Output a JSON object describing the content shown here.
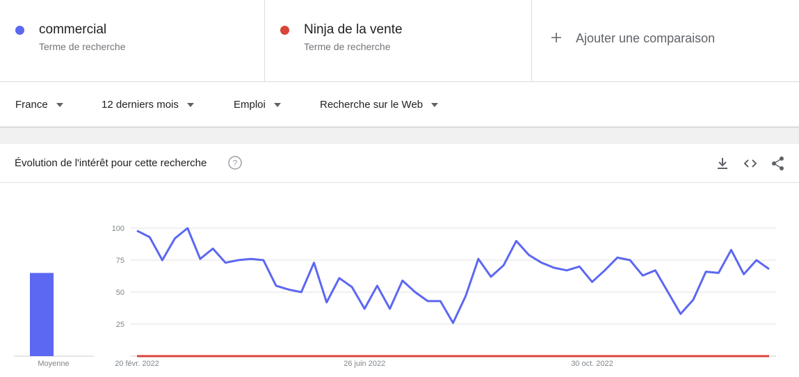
{
  "header": {
    "term_type": [
      "Terme de recherche",
      "Terme de recherche"
    ],
    "add_comparison": "Ajouter une comparaison"
  },
  "filters": [
    "France",
    "12 derniers mois",
    "Emploi",
    "Recherche sur le Web"
  ],
  "section_title": "Évolution de l'intérêt pour cette recherche",
  "chart_data": {
    "type": "line",
    "average_label": "Moyenne",
    "categories": [
      "20 févr. 2022",
      null,
      null,
      null,
      null,
      null,
      null,
      null,
      null,
      null,
      null,
      null,
      null,
      null,
      null,
      null,
      null,
      null,
      "26 juin 2022",
      null,
      null,
      null,
      null,
      null,
      null,
      null,
      null,
      null,
      null,
      null,
      null,
      null,
      null,
      null,
      null,
      null,
      "30 oct. 2022",
      null,
      null,
      null,
      null,
      null,
      null,
      null,
      null,
      null,
      null,
      null,
      null,
      null,
      null
    ],
    "series": [
      {
        "name": "commercial",
        "color": "#5c67f2",
        "average": 65,
        "values": [
          98,
          93,
          75,
          92,
          100,
          76,
          84,
          73,
          75,
          76,
          75,
          55,
          52,
          50,
          73,
          42,
          61,
          54,
          37,
          55,
          37,
          59,
          50,
          43,
          43,
          26,
          47,
          76,
          62,
          71,
          90,
          79,
          73,
          69,
          67,
          70,
          58,
          67,
          77,
          75,
          63,
          67,
          50,
          33,
          44,
          66,
          65,
          83,
          64,
          75,
          68
        ]
      },
      {
        "name": "Ninja de la vente",
        "color": "#d8453a",
        "average": 0,
        "values": [
          0,
          0,
          0,
          0,
          0,
          0,
          0,
          0,
          0,
          0,
          0,
          0,
          0,
          0,
          0,
          0,
          0,
          0,
          0,
          0,
          0,
          0,
          0,
          0,
          0,
          0,
          0,
          0,
          0,
          0,
          0,
          0,
          0,
          0,
          0,
          0,
          0,
          0,
          0,
          0,
          0,
          0,
          0,
          0,
          0,
          0,
          0,
          0,
          0,
          0,
          0
        ]
      }
    ],
    "ylim": [
      0,
      100
    ],
    "yticks": [
      25,
      50,
      75,
      100
    ],
    "grid": true
  }
}
